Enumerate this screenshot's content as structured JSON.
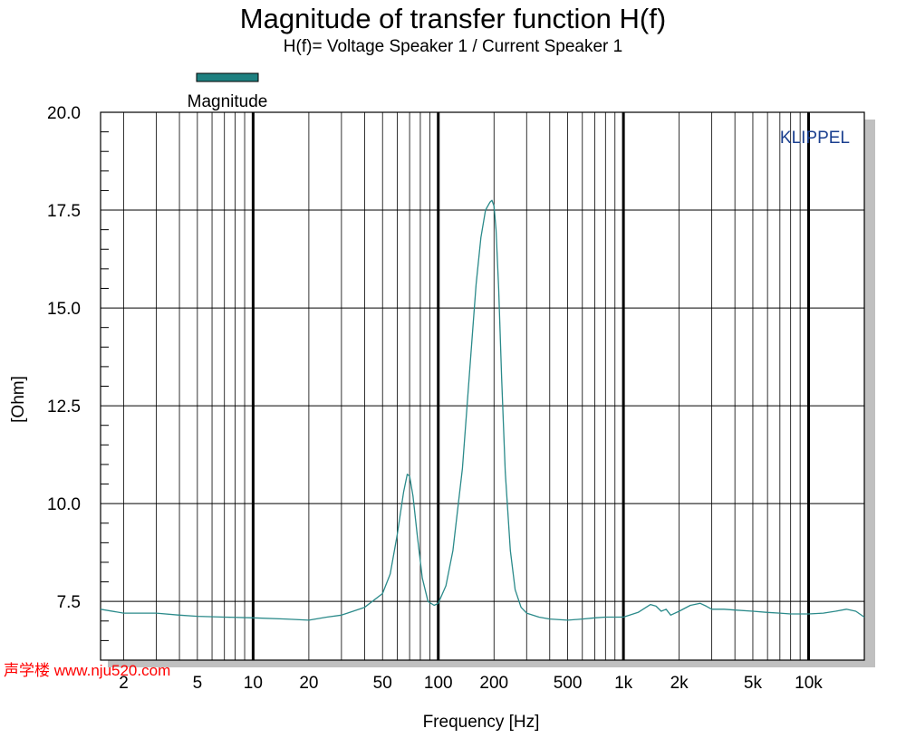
{
  "chart_data": {
    "type": "line",
    "title": "Magnitude of transfer function H(f)",
    "subtitle": "H(f)= Voltage Speaker 1 / Current Speaker 1",
    "xlabel": "Frequency [Hz]",
    "ylabel": "[Ohm]",
    "watermark_brand": "KLIPPEL",
    "site_watermark": "声学楼 www.nju520.com",
    "x_scale": "log",
    "xlim": [
      1.5,
      20000
    ],
    "ylim": [
      6.0,
      20.0
    ],
    "grid": true,
    "legend_position": "top-left",
    "colors": {
      "series": "#2a8a8a",
      "legend_swatch": "#1e8080",
      "brand": "#1a3f8f",
      "site_watermark": "#ff0000"
    },
    "x_ticks": [
      {
        "value": 2,
        "label": "2"
      },
      {
        "value": 5,
        "label": "5"
      },
      {
        "value": 10,
        "label": "10"
      },
      {
        "value": 20,
        "label": "20"
      },
      {
        "value": 50,
        "label": "50"
      },
      {
        "value": 100,
        "label": "100"
      },
      {
        "value": 200,
        "label": "200"
      },
      {
        "value": 500,
        "label": "500"
      },
      {
        "value": 1000,
        "label": "1k"
      },
      {
        "value": 2000,
        "label": "2k"
      },
      {
        "value": 5000,
        "label": "5k"
      },
      {
        "value": 10000,
        "label": "10k"
      }
    ],
    "y_ticks": [
      {
        "value": 7.5,
        "label": "7.5"
      },
      {
        "value": 10.0,
        "label": "10.0"
      },
      {
        "value": 12.5,
        "label": "12.5"
      },
      {
        "value": 15.0,
        "label": "15.0"
      },
      {
        "value": 17.5,
        "label": "17.5"
      },
      {
        "value": 20.0,
        "label": "20.0"
      }
    ],
    "series": [
      {
        "name": "Magnitude",
        "x": [
          1.5,
          2,
          3,
          4,
          5,
          7,
          10,
          15,
          20,
          25,
          30,
          40,
          50,
          55,
          60,
          65,
          68,
          70,
          73,
          77,
          82,
          88,
          95,
          100,
          110,
          120,
          135,
          150,
          160,
          170,
          180,
          190,
          195,
          200,
          205,
          212,
          220,
          230,
          245,
          260,
          280,
          300,
          350,
          400,
          500,
          600,
          700,
          800,
          1000,
          1200,
          1400,
          1500,
          1600,
          1700,
          1800,
          2000,
          2300,
          2600,
          2800,
          3000,
          3500,
          4000,
          5000,
          6000,
          7000,
          8000,
          10000,
          12000,
          14000,
          16000,
          18000,
          20000
        ],
        "y": [
          7.3,
          7.2,
          7.2,
          7.15,
          7.12,
          7.1,
          7.08,
          7.05,
          7.02,
          7.1,
          7.15,
          7.35,
          7.7,
          8.2,
          9.2,
          10.3,
          10.75,
          10.7,
          10.2,
          9.2,
          8.1,
          7.5,
          7.4,
          7.45,
          7.9,
          8.8,
          10.9,
          13.8,
          15.6,
          16.8,
          17.5,
          17.7,
          17.75,
          17.6,
          17.0,
          15.5,
          13.2,
          10.8,
          8.8,
          7.8,
          7.35,
          7.2,
          7.1,
          7.05,
          7.02,
          7.05,
          7.08,
          7.1,
          7.1,
          7.22,
          7.42,
          7.38,
          7.25,
          7.3,
          7.15,
          7.25,
          7.4,
          7.45,
          7.38,
          7.3,
          7.3,
          7.28,
          7.25,
          7.22,
          7.2,
          7.18,
          7.18,
          7.2,
          7.25,
          7.3,
          7.25,
          7.1
        ]
      }
    ]
  }
}
